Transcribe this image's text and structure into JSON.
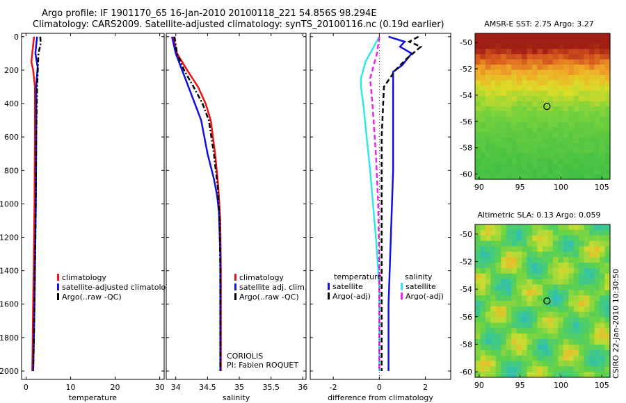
{
  "title": {
    "line1": "Argo profile: IF 1901170_65 16-Jan-2010 20100118_221 54.856S 98.294E",
    "line2": "Climatology: CARS2009. Satellite-adjusted climatology: synTS_20100116.nc (0.19d earlier)"
  },
  "colors": {
    "climatology": "#ee1111",
    "satellite": "#1111dd",
    "argo": "#000000",
    "salinity_satellite": "#33e6e6",
    "salinity_argo": "#ee22ee"
  },
  "chart_data": [
    {
      "type": "line",
      "xlabel": "temperature",
      "xlim": [
        -1,
        31
      ],
      "ylim": [
        2050,
        -20
      ],
      "xticks": [
        0,
        10,
        20,
        30
      ],
      "yticks": [
        0,
        200,
        400,
        600,
        800,
        1000,
        1200,
        1400,
        1600,
        1800,
        2000
      ],
      "legend": [
        "climatology",
        "satellite-adjusted climatology",
        "Argo(..raw -QC)"
      ],
      "series": [
        {
          "name": "climatology",
          "style": "solid",
          "points": [
            [
              1.8,
              0
            ],
            [
              1.6,
              50
            ],
            [
              1.4,
              100
            ],
            [
              1.2,
              150
            ],
            [
              1.6,
              200
            ],
            [
              2.0,
              300
            ],
            [
              2.0,
              600
            ],
            [
              1.9,
              1000
            ],
            [
              1.7,
              1400
            ],
            [
              1.5,
              1800
            ],
            [
              1.4,
              2000
            ]
          ]
        },
        {
          "name": "satellite-adjusted climatology",
          "style": "solid",
          "points": [
            [
              2.5,
              0
            ],
            [
              2.3,
              50
            ],
            [
              2.1,
              100
            ],
            [
              2.6,
              180
            ],
            [
              2.3,
              300
            ],
            [
              2.3,
              600
            ],
            [
              2.2,
              1000
            ],
            [
              2.1,
              1200
            ],
            [
              1.9,
              1600
            ],
            [
              1.6,
              2000
            ]
          ]
        },
        {
          "name": "Argo(..raw -QC)",
          "style": "dashdot",
          "points": [
            [
              3.2,
              0
            ],
            [
              3.3,
              40
            ],
            [
              2.8,
              100
            ],
            [
              2.5,
              300
            ],
            [
              2.3,
              600
            ],
            [
              2.2,
              1000
            ],
            [
              2.0,
              1400
            ],
            [
              1.8,
              1800
            ],
            [
              1.6,
              2000
            ]
          ]
        }
      ]
    },
    {
      "type": "line",
      "xlabel": "salinity",
      "xlim": [
        33.85,
        36.05
      ],
      "ylim": [
        2050,
        -20
      ],
      "xticks": [
        34,
        34.5,
        35,
        35.5,
        36
      ],
      "legend": [
        "climatology",
        "satellite adj. clim.",
        "Argo(..raw -QC)"
      ],
      "annotations": [
        "CORIOLIS",
        "PI: Fabien ROQUET"
      ],
      "series": [
        {
          "name": "climatology",
          "style": "solid",
          "points": [
            [
              33.96,
              0
            ],
            [
              34.02,
              100
            ],
            [
              34.18,
              200
            ],
            [
              34.35,
              300
            ],
            [
              34.47,
              400
            ],
            [
              34.55,
              500
            ],
            [
              34.62,
              700
            ],
            [
              34.67,
              900
            ],
            [
              34.7,
              1100
            ],
            [
              34.71,
              1400
            ],
            [
              34.71,
              2000
            ]
          ]
        },
        {
          "name": "satellite adj. clim.",
          "style": "solid",
          "points": [
            [
              33.94,
              0
            ],
            [
              34.0,
              100
            ],
            [
              34.1,
              200
            ],
            [
              34.2,
              300
            ],
            [
              34.3,
              400
            ],
            [
              34.4,
              500
            ],
            [
              34.5,
              700
            ],
            [
              34.6,
              850
            ],
            [
              34.65,
              950
            ],
            [
              34.68,
              1050
            ],
            [
              34.7,
              1300
            ],
            [
              34.7,
              2000
            ]
          ]
        },
        {
          "name": "Argo(..raw -QC)",
          "style": "dashdot",
          "points": [
            [
              33.98,
              0
            ],
            [
              34.02,
              100
            ],
            [
              34.13,
              200
            ],
            [
              34.28,
              300
            ],
            [
              34.42,
              400
            ],
            [
              34.52,
              500
            ],
            [
              34.6,
              700
            ],
            [
              34.66,
              900
            ],
            [
              34.69,
              1100
            ],
            [
              34.7,
              1400
            ],
            [
              34.7,
              2000
            ]
          ]
        }
      ]
    },
    {
      "type": "line",
      "xlabel": "difference from climatology",
      "xlim": [
        -3,
        3.1
      ],
      "ylim": [
        2050,
        -20
      ],
      "xticks": [
        -2,
        0,
        2
      ],
      "xticklabels": [
        "-2",
        "0",
        "2"
      ],
      "legend_groups": [
        {
          "title": "temperature",
          "entries": [
            "satellite",
            "Argo(-adj)"
          ]
        },
        {
          "title": "salinity",
          "entries": [
            "satellite",
            "Argo(-adj)"
          ]
        }
      ],
      "series": [
        {
          "name": "temperature satellite",
          "style": "solid",
          "points": [
            [
              0.4,
              0
            ],
            [
              1.1,
              30
            ],
            [
              0.9,
              60
            ],
            [
              1.4,
              100
            ],
            [
              1.0,
              170
            ],
            [
              0.6,
              210
            ],
            [
              0.6,
              400
            ],
            [
              0.6,
              800
            ],
            [
              0.5,
              1200
            ],
            [
              0.4,
              1600
            ],
            [
              0.4,
              2000
            ]
          ]
        },
        {
          "name": "temperature Argo(-adj)",
          "style": "dashed",
          "points": [
            [
              1.7,
              0
            ],
            [
              1.3,
              30
            ],
            [
              1.8,
              60
            ],
            [
              1.2,
              130
            ],
            [
              0.7,
              200
            ],
            [
              0.2,
              300
            ],
            [
              0.1,
              600
            ],
            [
              0.1,
              1000
            ],
            [
              0.1,
              1500
            ],
            [
              0.1,
              2000
            ]
          ]
        },
        {
          "name": "salinity satellite",
          "style": "solid",
          "points": [
            [
              0.0,
              0
            ],
            [
              -0.2,
              50
            ],
            [
              -0.6,
              150
            ],
            [
              -0.8,
              250
            ],
            [
              -0.8,
              300
            ],
            [
              -0.7,
              400
            ],
            [
              -0.4,
              800
            ],
            [
              -0.15,
              1200
            ],
            [
              0.0,
              1500
            ],
            [
              0.0,
              2000
            ]
          ]
        },
        {
          "name": "salinity Argo(-adj)",
          "style": "dashed",
          "points": [
            [
              0.0,
              0
            ],
            [
              -0.1,
              100
            ],
            [
              -0.4,
              250
            ],
            [
              -0.3,
              400
            ],
            [
              -0.15,
              700
            ],
            [
              -0.05,
              1000
            ],
            [
              0.0,
              1400
            ],
            [
              0.0,
              2000
            ]
          ]
        }
      ]
    },
    {
      "type": "heatmap",
      "title": "AMSR-E SST: 2.75 Argo: 3.27",
      "xlim": [
        89.5,
        106
      ],
      "ylim": [
        -60.4,
        -49.3
      ],
      "xticks": [
        90,
        95,
        100,
        105
      ],
      "yticks": [
        -50,
        -52,
        -54,
        -56,
        -58,
        -60
      ],
      "marker": [
        98.294,
        -54.856
      ]
    },
    {
      "type": "heatmap",
      "title": "Altimetric SLA: 0.13 Argo: 0.059",
      "xlim": [
        89.5,
        106
      ],
      "ylim": [
        -60.4,
        -49.3
      ],
      "xticks": [
        90,
        95,
        100,
        105
      ],
      "yticks": [
        -50,
        -52,
        -54,
        -56,
        -58,
        -60
      ],
      "marker": [
        98.294,
        -54.856
      ]
    }
  ],
  "credit": "CSIRO 22-Jan-2010 10:30:50"
}
